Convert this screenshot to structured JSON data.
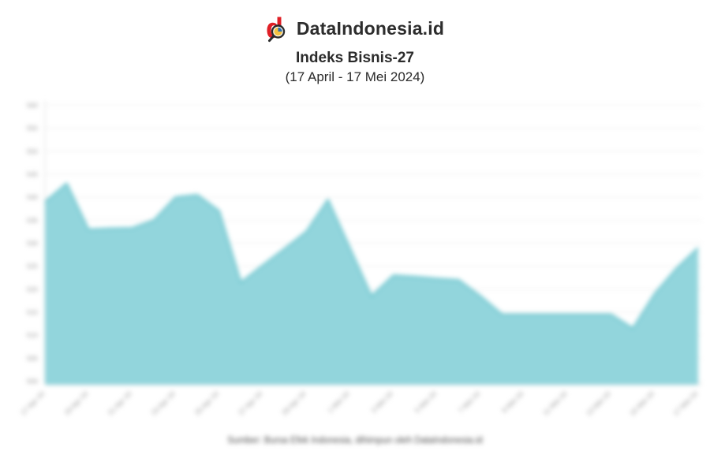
{
  "header": {
    "brand": "DataIndonesia.id",
    "title": "Indeks Bisnis-27",
    "subtitle": "(17 April - 17 Mei 2024)"
  },
  "footer": {
    "source": "Sumber: Bursa Efek Indonesia, dihimpun oleh DataIndonesia.id"
  },
  "colors": {
    "brand_red": "#e01f26",
    "logo_glass_dark": "#2b2b2b",
    "logo_pie_yellow": "#f5c242",
    "logo_pie_blue": "#2a6fb0",
    "area_fill": "#92d5dc",
    "area_stroke": "#5fbfc9",
    "grid": "#ececec",
    "axis": "#d9d9d9",
    "axis_text": "#9a9a9a",
    "text_dark": "#2b2b2b"
  },
  "chart_data": {
    "type": "area",
    "title": "Indeks Bisnis-27",
    "subtitle": "(17 April - 17 Mei 2024)",
    "xlabel": "",
    "ylabel": "",
    "grid": true,
    "legend": false,
    "x_tick_every": 2,
    "x_tick_rotation": -45,
    "ylim": [
      499,
      562
    ],
    "y_ticks": [
      560,
      555,
      550,
      545,
      540,
      535,
      530,
      525,
      520,
      515,
      510,
      505,
      500
    ],
    "x": [
      "17 Apr 24",
      "18 Apr 24",
      "19 Apr 24",
      "20 Apr 24",
      "21 Apr 24",
      "22 Apr 24",
      "23 Apr 24",
      "24 Apr 24",
      "25 Apr 24",
      "26 Apr 24",
      "27 Apr 24",
      "28 Apr 24",
      "29 Apr 24",
      "30 Apr 24",
      "1 Mei 24",
      "2 Mei 24",
      "3 Mei 24",
      "4 Mei 24",
      "5 Mei 24",
      "6 Mei 24",
      "7 Mei 24",
      "8 Mei 24",
      "9 Mei 24",
      "10 Mei 24",
      "11 Mei 24",
      "12 Mei 24",
      "13 Mei 24",
      "14 Mei 24",
      "15 Mei 24",
      "16 Mei 24",
      "17 Mei 24"
    ],
    "values": [
      539,
      543,
      533,
      533.2,
      533.3,
      535,
      540,
      540.5,
      537,
      521.5,
      525.2,
      528.8,
      532.5,
      539.5,
      529,
      518.5,
      523,
      522.7,
      522.3,
      522,
      518.5,
      514.5,
      514.5,
      514.5,
      514.5,
      514.5,
      514.5,
      511.5,
      519,
      524.5,
      529
    ]
  }
}
